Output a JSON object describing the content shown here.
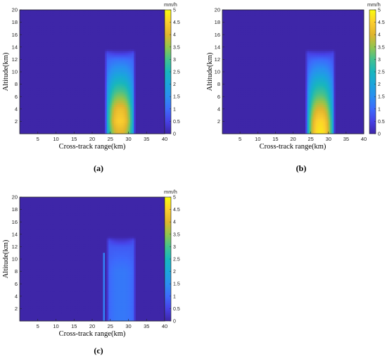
{
  "chart_data": [
    {
      "type": "heatmap",
      "panel_label": "(a)",
      "xlabel": "Cross-track range(km)",
      "ylabel": "Altitude(km)",
      "xlim": [
        0,
        40
      ],
      "ylim": [
        0,
        20
      ],
      "xticks": [
        5,
        10,
        15,
        20,
        25,
        30,
        35,
        40
      ],
      "yticks": [
        2,
        4,
        6,
        8,
        10,
        12,
        14,
        16,
        18,
        20
      ],
      "colorbar": {
        "unit": "mm/h",
        "range": [
          0,
          5
        ],
        "ticks": [
          "0",
          "0.5",
          "1",
          "1.5",
          "2",
          "2.5",
          "3",
          "3.5",
          "4",
          "4.5",
          "5"
        ]
      },
      "background_value": 0,
      "rain_cell": {
        "x_range": [
          23.5,
          32
        ],
        "x_center": 27.7,
        "top_altitude": 13,
        "profile": [
          {
            "altitude": 0,
            "value": 4.0
          },
          {
            "altitude": 2,
            "value": 4.5
          },
          {
            "altitude": 4,
            "value": 4.2
          },
          {
            "altitude": 6,
            "value": 3.4
          },
          {
            "altitude": 8,
            "value": 2.6
          },
          {
            "altitude": 10,
            "value": 1.8
          },
          {
            "altitude": 12,
            "value": 1.1
          },
          {
            "altitude": 13,
            "value": 0.4
          }
        ],
        "edge_value": 0.8
      }
    },
    {
      "type": "heatmap",
      "panel_label": "(b)",
      "xlabel": "Cross-track range(km)",
      "ylabel": "Altitude(km)",
      "xlim": [
        0,
        40
      ],
      "ylim": [
        0,
        20
      ],
      "xticks": [
        5,
        10,
        15,
        20,
        25,
        30,
        35,
        40
      ],
      "yticks": [
        2,
        4,
        6,
        8,
        10,
        12,
        14,
        16,
        18,
        20
      ],
      "colorbar": {
        "unit": "mm/h",
        "range": [
          0,
          5
        ],
        "ticks": [
          "0",
          "0.5",
          "1",
          "1.5",
          "2",
          "2.5",
          "3",
          "3.5",
          "4",
          "4.5",
          "5"
        ]
      },
      "background_value": 0,
      "rain_cell": {
        "x_range": [
          23.5,
          32
        ],
        "x_center": 27.7,
        "top_altitude": 13,
        "profile": [
          {
            "altitude": 0,
            "value": 4.8
          },
          {
            "altitude": 2,
            "value": 4.6
          },
          {
            "altitude": 4,
            "value": 4.0
          },
          {
            "altitude": 6,
            "value": 3.2
          },
          {
            "altitude": 8,
            "value": 2.5
          },
          {
            "altitude": 10,
            "value": 1.7
          },
          {
            "altitude": 12,
            "value": 1.0
          },
          {
            "altitude": 13,
            "value": 0.4
          }
        ],
        "edge_value": 0.6
      }
    },
    {
      "type": "heatmap",
      "panel_label": "(c)",
      "xlabel": "Cross-track range(km)",
      "ylabel": "Altitude(km)",
      "xlim": [
        0,
        40
      ],
      "ylim": [
        0,
        20
      ],
      "xticks": [
        5,
        10,
        15,
        20,
        25,
        30,
        35,
        40
      ],
      "yticks": [
        2,
        4,
        6,
        8,
        10,
        12,
        14,
        16,
        18,
        20
      ],
      "colorbar": {
        "unit": "mm/h",
        "range": [
          0,
          5
        ],
        "ticks": [
          "0",
          "0.5",
          "1",
          "1.5",
          "2",
          "2.5",
          "3",
          "3.5",
          "4",
          "4.5",
          "5"
        ]
      },
      "background_value": 0,
      "rain_cell": {
        "x_range": [
          24,
          32
        ],
        "x_center": 28,
        "top_altitude": 13,
        "profile": [
          {
            "altitude": 0,
            "value": 1.2
          },
          {
            "altitude": 4,
            "value": 1.2
          },
          {
            "altitude": 8,
            "value": 1.2
          },
          {
            "altitude": 12,
            "value": 0.8
          },
          {
            "altitude": 13,
            "value": 0.3
          }
        ],
        "edge_value": 0.8
      },
      "vertical_streak": {
        "x": 23.3,
        "altitude_range": [
          0,
          11
        ],
        "value": 1.3
      }
    }
  ]
}
